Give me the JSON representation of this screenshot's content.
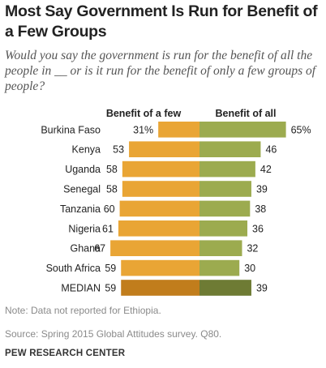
{
  "title": "Most Say Government  Is Run for Benefit of a Few Groups",
  "subtitle": "Would you say the government is run for the benefit of all the people in __ or is it run for the benefit of only a few groups of people?",
  "note": "Note: Data not reported for Ethiopia.",
  "source": "Source: Spring 2015 Global Attitudes survey. Q80.",
  "org": "PEW RESEARCH CENTER",
  "colors": {
    "few": "#e9a535",
    "all": "#9cab4f",
    "few_median": "#c17d1c",
    "all_median": "#6e7b34"
  },
  "chart_data": {
    "type": "bar",
    "orientation": "horizontal-diverging",
    "categories": [
      "Burkina Faso",
      "Kenya",
      "Uganda",
      "Senegal",
      "Tanzania",
      "Nigeria",
      "Ghana",
      "South Africa",
      "MEDIAN"
    ],
    "series": [
      {
        "name": "Benefit of a few",
        "values": [
          31,
          53,
          58,
          58,
          60,
          61,
          67,
          59,
          59
        ],
        "labels": [
          "31%",
          "53",
          "58",
          "58",
          "60",
          "61",
          "67",
          "59",
          "59"
        ]
      },
      {
        "name": "Benefit of all",
        "values": [
          65,
          46,
          42,
          39,
          38,
          36,
          32,
          30,
          39
        ],
        "labels": [
          "65%",
          "46",
          "42",
          "39",
          "38",
          "36",
          "32",
          "30",
          "39"
        ]
      }
    ]
  }
}
